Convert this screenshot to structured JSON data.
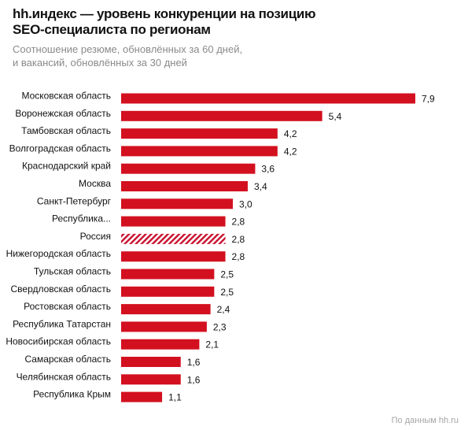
{
  "header": {
    "title_line1": "hh.индекс — уровень конкуренции на позицию",
    "title_line2": "SEO-специалиста по регионам",
    "subtitle_line1": "Соотношение резюме, обновлённых за 60 дней,",
    "subtitle_line2": "и вакансий, обновлённых за 30 дней"
  },
  "source": "По данным hh.ru",
  "colors": {
    "bar": "#d3101f",
    "highlight_stripe": "#c8102e",
    "text": "#111111"
  },
  "chart_data": {
    "type": "bar",
    "orientation": "horizontal",
    "title": "hh.индекс — уровень конкуренции на позицию SEO-специалиста по регионам",
    "subtitle": "Соотношение резюме, обновлённых за 60 дней, и вакансий, обновлённых за 30 дней",
    "categories": [
      "Московская область",
      "Воронежская область",
      "Тамбовская область",
      "Волгоградская область",
      "Краснодарский край",
      "Москва",
      "Санкт-Петербург",
      "Республика...",
      "Россия",
      "Нижегородская область",
      "Тульская область",
      "Свердловская область",
      "Ростовская область",
      "Республика Татарстан",
      "Новосибирская область",
      "Самарская область",
      "Челябинская область",
      "Республика Крым"
    ],
    "values": [
      7.9,
      5.4,
      4.2,
      4.2,
      3.6,
      3.4,
      3.0,
      2.8,
      2.8,
      2.8,
      2.5,
      2.5,
      2.4,
      2.3,
      2.1,
      1.6,
      1.6,
      1.1
    ],
    "value_labels": [
      "7,9",
      "5,4",
      "4,2",
      "4,2",
      "3,6",
      "3,4",
      "3,0",
      "2,8",
      "2,8",
      "2,8",
      "2,5",
      "2,5",
      "2,4",
      "2,3",
      "2,1",
      "1,6",
      "1,6",
      "1,1"
    ],
    "highlighted_category": "Россия",
    "xlim": [
      0,
      7.9
    ],
    "grid": false,
    "legend": "none"
  }
}
